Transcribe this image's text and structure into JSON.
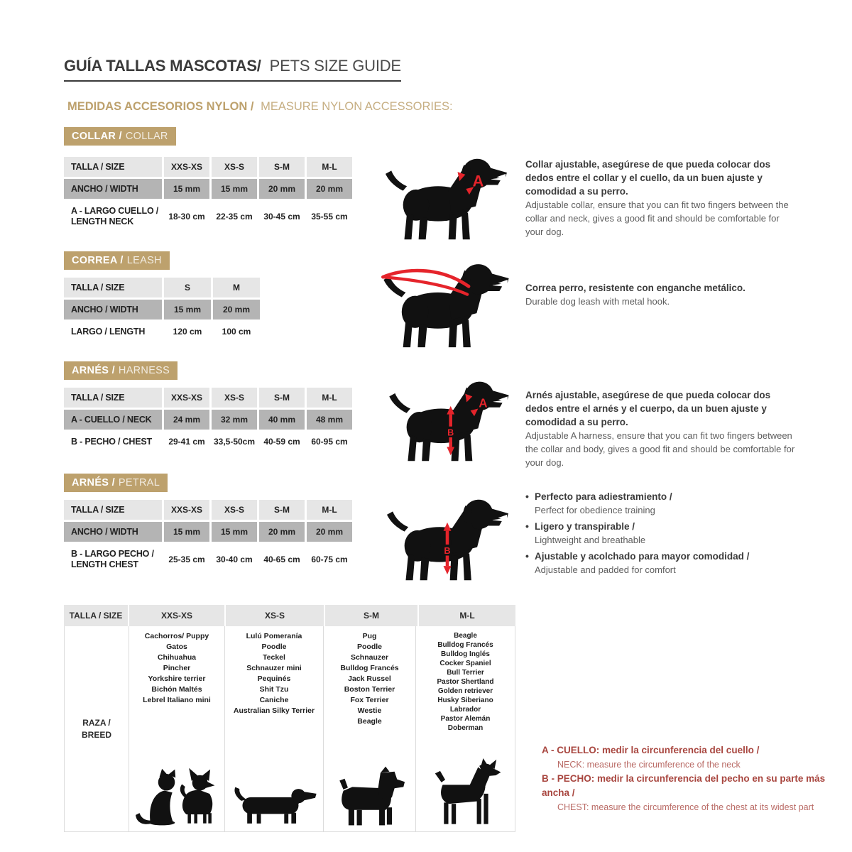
{
  "header": {
    "title_es": "GUÍA TALLAS MASCOTAS/",
    "title_en": "PETS SIZE GUIDE",
    "subtitle_es": "MEDIDAS ACCESORIOS NYLON /",
    "subtitle_en": "MEASURE NYLON ACCESSORIES:"
  },
  "collar": {
    "badge_es": "COLLAR /",
    "badge_en": "COLLAR",
    "table": {
      "headers": [
        "TALLA / SIZE",
        "XXS-XS",
        "XS-S",
        "S-M",
        "M-L"
      ],
      "rows": [
        {
          "label": "ANCHO / WIDTH",
          "values": [
            "15 mm",
            "15 mm",
            "20 mm",
            "20 mm"
          ]
        },
        {
          "label": "A - LARGO CUELLO /",
          "label2": "LENGTH NECK",
          "values": [
            "18-30 cm",
            "22-35 cm",
            "30-45 cm",
            "35-55 cm"
          ]
        }
      ]
    },
    "marker": "A",
    "desc_es": "Collar ajustable, asegúrese de que pueda colocar dos dedos entre el collar y el cuello, da un buen ajuste y comodidad a su perro.",
    "desc_en": "Adjustable collar, ensure that you can fit two fingers between the collar and neck, gives a good fit and should be comfortable for your dog."
  },
  "leash": {
    "badge_es": "CORREA /",
    "badge_en": "LEASH",
    "table": {
      "headers": [
        "TALLA / SIZE",
        "S",
        "M"
      ],
      "rows": [
        {
          "label": "ANCHO / WIDTH",
          "values": [
            "15 mm",
            "20 mm"
          ]
        },
        {
          "label": "LARGO / LENGTH",
          "values": [
            "120 cm",
            "100 cm"
          ]
        }
      ]
    },
    "desc_es": "Correa perro, resistente con enganche metálico.",
    "desc_en": "Durable dog leash with metal hook."
  },
  "harness": {
    "badge_es": "ARNÉS /",
    "badge_en": "HARNESS",
    "table": {
      "headers": [
        "TALLA / SIZE",
        "XXS-XS",
        "XS-S",
        "S-M",
        "M-L"
      ],
      "rows": [
        {
          "label": "A - CUELLO / NECK",
          "values": [
            "24 mm",
            "32 mm",
            "40 mm",
            "48 mm"
          ]
        },
        {
          "label": "B - PECHO / CHEST",
          "values": [
            "29-41 cm",
            "33,5-50cm",
            "40-59 cm",
            "60-95 cm"
          ]
        }
      ]
    },
    "marker_a": "A",
    "marker_b": "B",
    "desc_es": "Arnés ajustable, asegúrese de que pueda colocar dos dedos entre el arnés y el cuerpo, da un buen ajuste y comodidad a su perro.",
    "desc_en": "Adjustable A harness, ensure that you can fit two fingers between the collar and body, gives a good fit and should be comfortable for your dog."
  },
  "petral": {
    "badge_es": "ARNÉS /",
    "badge_en": "PETRAL",
    "table": {
      "headers": [
        "TALLA / SIZE",
        "XXS-XS",
        "XS-S",
        "S-M",
        "M-L"
      ],
      "rows": [
        {
          "label": "ANCHO / WIDTH",
          "values": [
            "15 mm",
            "15 mm",
            "20 mm",
            "20 mm"
          ]
        },
        {
          "label": "B - LARGO PECHO /",
          "label2": "LENGTH CHEST",
          "values": [
            "25-35 cm",
            "30-40 cm",
            "40-65 cm",
            "60-75 cm"
          ]
        }
      ]
    },
    "marker_b": "B",
    "bullets": [
      {
        "es": "Perfecto para adiestramiento /",
        "en": "Perfect for obedience training"
      },
      {
        "es": "Ligero y transpirable /",
        "en": "Lightweight and breathable"
      },
      {
        "es": "Ajustable y acolchado para mayor comodidad /",
        "en": "Adjustable and padded for comfort"
      }
    ]
  },
  "breeds": {
    "headers": [
      "TALLA / SIZE",
      "XXS-XS",
      "XS-S",
      "S-M",
      "M-L"
    ],
    "row_label_line1": "RAZA /",
    "row_label_line2": "BREED",
    "columns": [
      {
        "list": [
          "Cachorros/ Puppy",
          "Gatos",
          "Chihuahua",
          "Pincher",
          "Yorkshire terrier",
          "Bichón Maltés",
          "Lebrel Italiano mini"
        ]
      },
      {
        "list": [
          "Lulú Pomeranía",
          "Poodle",
          "Teckel",
          "Schnauzer mini",
          "Pequinés",
          "Shit Tzu",
          "Caniche",
          "Australian Silky Terrier"
        ]
      },
      {
        "list": [
          "Pug",
          "Poodle",
          "Schnauzer",
          "Bulldog Francés",
          "Jack Russel",
          "Boston Terrier",
          "Fox Terrier",
          "Westie",
          "Beagle"
        ]
      },
      {
        "list": [
          "Beagle",
          "Bulldog Francés",
          "Bulldog Inglés",
          "Cocker Spaniel",
          "Bull Terrier",
          "Pastor Shertland",
          "Golden retriever",
          "Husky Siberiano",
          "Labrador",
          "Pastor Alemán",
          "Doberman"
        ]
      }
    ]
  },
  "notes": [
    {
      "es": "A - CUELLO: medir la circunferencia del cuello /",
      "en": "NECK: measure the circumference of the neck"
    },
    {
      "es": "B - PECHO: medir la circunferencia del pecho en su parte más ancha /",
      "en": "CHEST: measure the circumference of the chest at its widest part"
    }
  ],
  "colors": {
    "tan": "#bda16d",
    "table_header_gray": "#e6e6e6",
    "table_shade_gray": "#b4b4b4",
    "marker_red": "#e5242b",
    "note_red": "#a8463f",
    "text_dark": "#3a3a3a",
    "silhouette_black": "#111111"
  }
}
